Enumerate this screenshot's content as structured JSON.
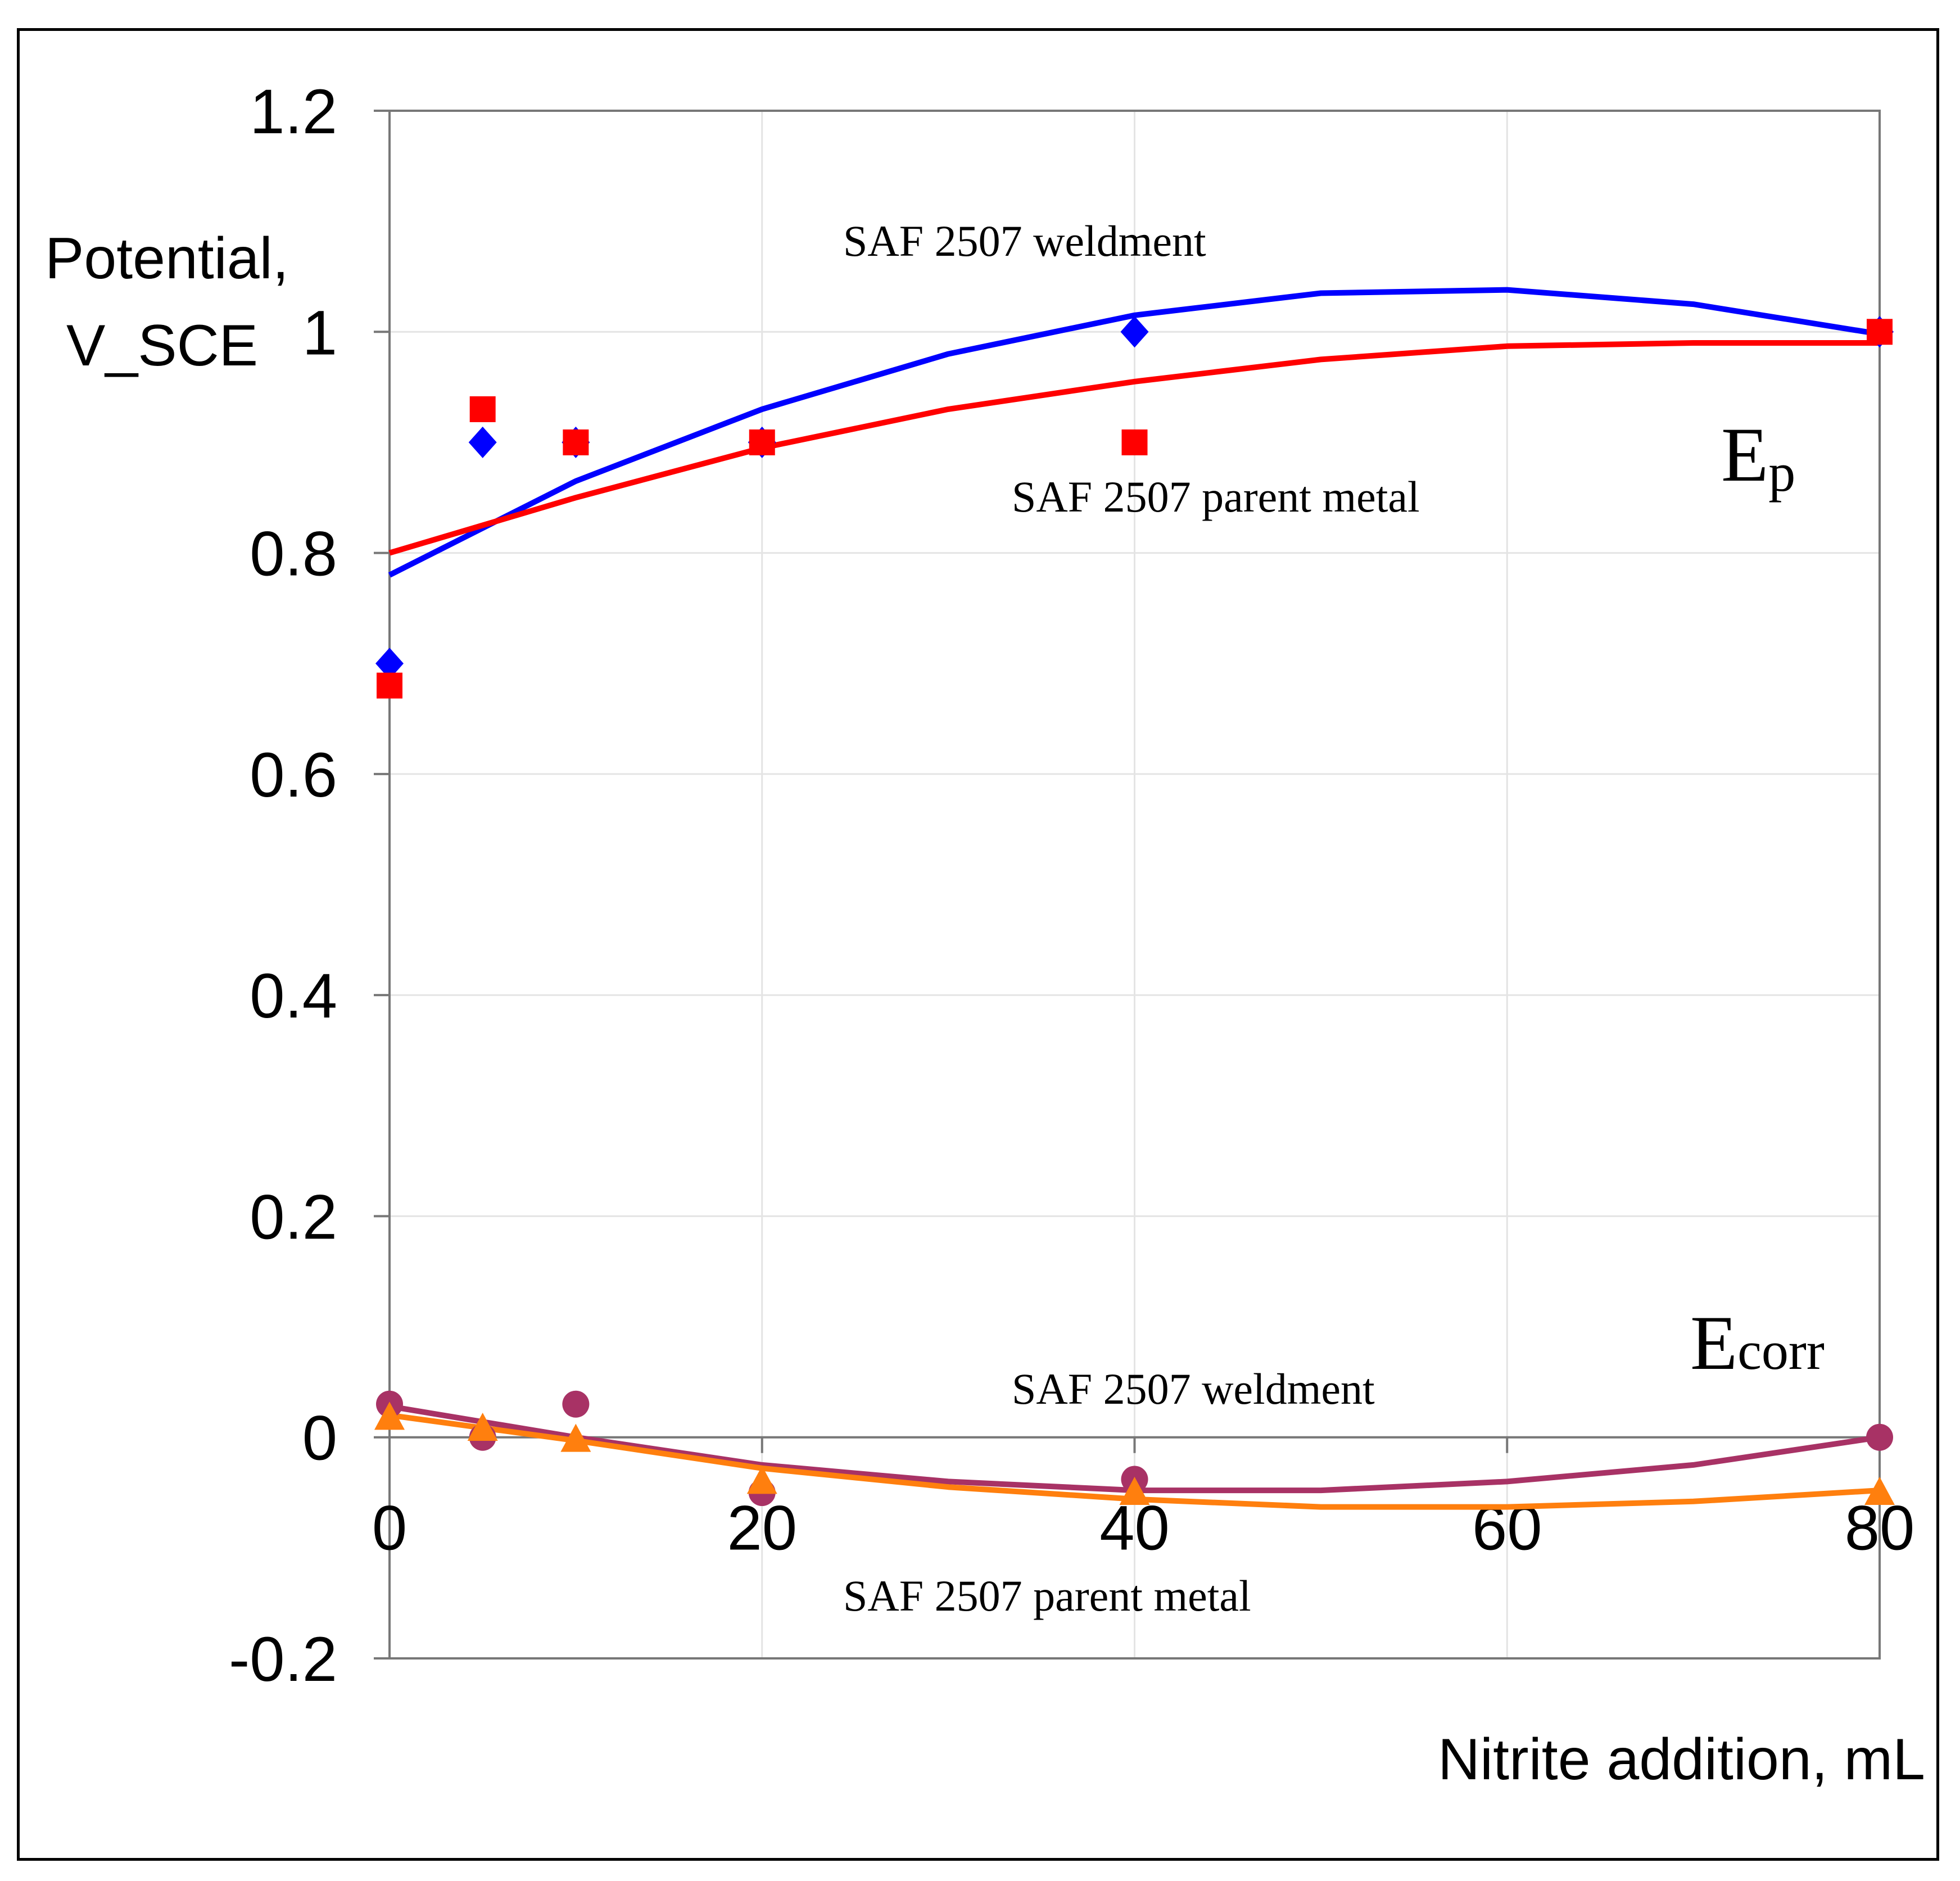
{
  "chart_data": {
    "type": "scatter",
    "title": "",
    "xlabel": "Nitrite addition, mL",
    "ylabel_line1": "Potential,",
    "ylabel_line2": "V_SCE",
    "xlim": [
      0,
      80
    ],
    "ylim": [
      -0.2,
      1.2
    ],
    "x_ticks": [
      0,
      20,
      40,
      60,
      80
    ],
    "x_tick_labels": [
      "0",
      "20",
      "40",
      "60",
      "80"
    ],
    "y_ticks": [
      -0.2,
      0,
      0.2,
      0.4,
      0.6,
      0.8,
      1,
      1.2
    ],
    "y_tick_labels": [
      "-0.2",
      "0",
      "0.2",
      "0.4",
      "0.6",
      "0.8",
      "1",
      "1.2"
    ],
    "grid": true,
    "series": [
      {
        "name": "Ep SAF 2507 weldment",
        "marker": "diamond",
        "color": "#0000ff",
        "x": [
          0,
          5,
          10,
          20,
          40,
          80
        ],
        "y": [
          0.7,
          0.9,
          0.9,
          0.9,
          1.0,
          1.0
        ],
        "trend": {
          "x": [
            0,
            10,
            20,
            30,
            40,
            50,
            60,
            70,
            80
          ],
          "y": [
            0.78,
            0.865,
            0.93,
            0.98,
            1.015,
            1.035,
            1.038,
            1.025,
            0.998
          ]
        }
      },
      {
        "name": "Ep SAF 2507 parent metal",
        "marker": "square",
        "color": "#ff0000",
        "x": [
          0,
          5,
          10,
          20,
          40,
          80
        ],
        "y": [
          0.68,
          0.93,
          0.9,
          0.9,
          0.9,
          1.0
        ],
        "trend": {
          "x": [
            0,
            10,
            20,
            30,
            40,
            50,
            60,
            70,
            80
          ],
          "y": [
            0.8,
            0.85,
            0.895,
            0.93,
            0.955,
            0.975,
            0.987,
            0.99,
            0.99
          ]
        }
      },
      {
        "name": "Ecorr SAF 2507 weldment",
        "marker": "circle",
        "color": "#a83265",
        "x": [
          0,
          5,
          10,
          20,
          40,
          80
        ],
        "y": [
          0.03,
          0.0,
          0.03,
          -0.05,
          -0.038,
          0.0
        ],
        "trend": {
          "x": [
            0,
            10,
            20,
            30,
            40,
            50,
            60,
            70,
            80
          ],
          "y": [
            0.028,
            0.0,
            -0.025,
            -0.04,
            -0.048,
            -0.048,
            -0.04,
            -0.025,
            0.0
          ]
        }
      },
      {
        "name": "Ecorr SAF 2507 parent metal",
        "marker": "triangle",
        "color": "#ff7f0e",
        "x": [
          0,
          5,
          10,
          20,
          40,
          80
        ],
        "y": [
          0.018,
          0.008,
          -0.002,
          -0.04,
          -0.05,
          -0.05
        ],
        "trend": {
          "x": [
            0,
            10,
            20,
            30,
            40,
            50,
            60,
            70,
            80
          ],
          "y": [
            0.02,
            -0.003,
            -0.028,
            -0.045,
            -0.056,
            -0.063,
            -0.063,
            -0.058,
            -0.048
          ]
        }
      }
    ],
    "annotations": {
      "ep_weldment": "SAF 2507 weldment",
      "ep_parent": "SAF 2507 parent metal",
      "ecorr_weldment": "SAF 2507 weldment",
      "ecorr_parent": "SAF 2507 parent metal",
      "ep_label_main": "E",
      "ep_label_sub": "p",
      "ecorr_label_main": "E",
      "ecorr_label_sub": "corr"
    }
  }
}
